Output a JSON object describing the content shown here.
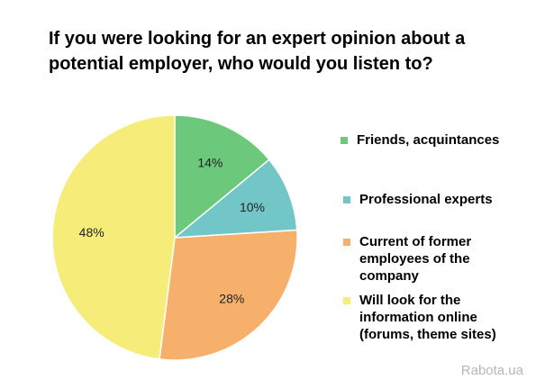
{
  "chart_data": {
    "type": "pie",
    "title": "If you were looking for an expert opinion about a potential employer, who would you listen to?",
    "categories": [
      "Friends, acquintances",
      "Professional experts",
      "Current of former employees of the company",
      "Will look for the information online (forums, theme sites)"
    ],
    "values": [
      14,
      10,
      28,
      48
    ],
    "data_labels": [
      "14%",
      "10%",
      "28%",
      "48%"
    ],
    "colors": [
      "#6cc97c",
      "#73c6c8",
      "#f7b06c",
      "#f5ec79"
    ],
    "legend_position": "right"
  },
  "watermark": "Rabota.ua"
}
